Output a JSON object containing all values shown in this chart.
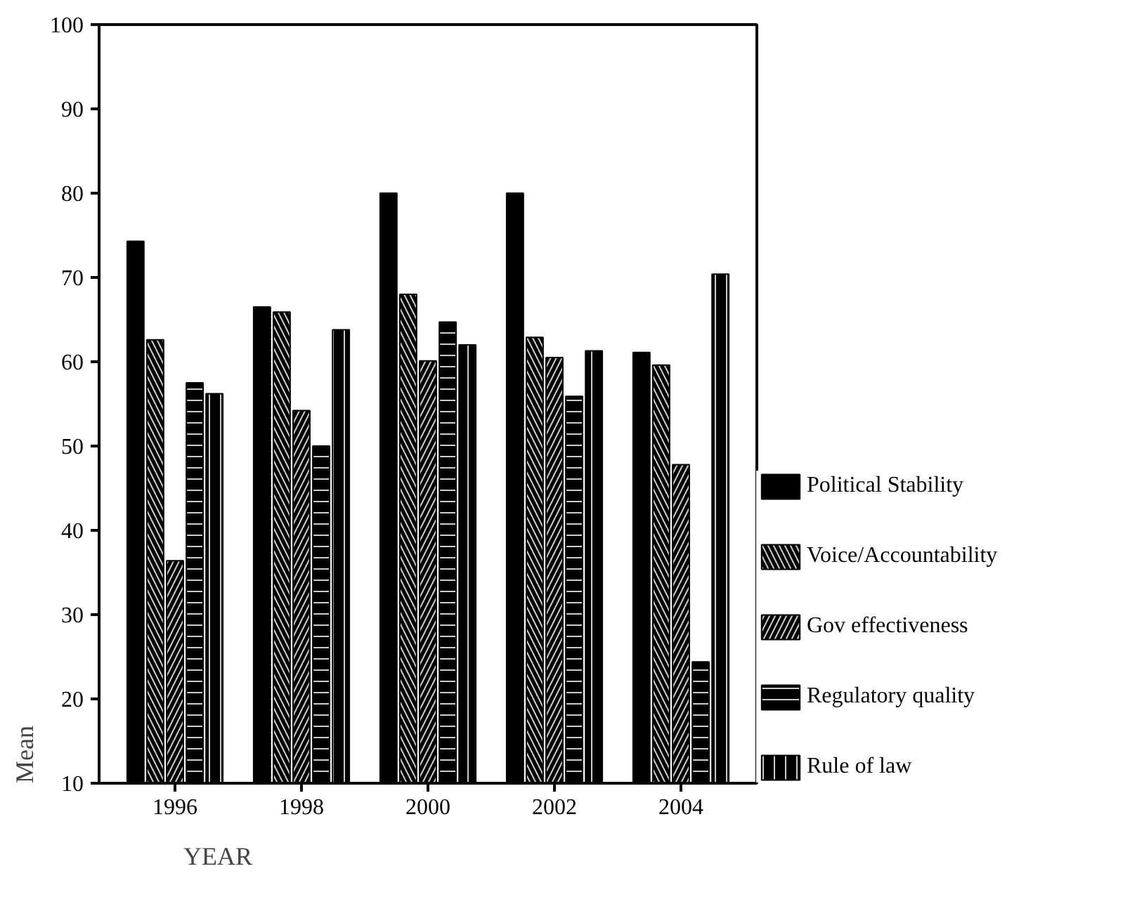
{
  "chart_data": {
    "type": "bar",
    "xlabel": "YEAR",
    "ylabel": "Mean",
    "categories": [
      "1996",
      "1998",
      "2000",
      "2002",
      "2004"
    ],
    "series": [
      {
        "name": "Political Stability",
        "color": "#000000",
        "values": [
          74.3,
          66.5,
          80.0,
          80.0,
          61.1
        ]
      },
      {
        "name": "Voice/Accountability",
        "color": "#000000",
        "values": [
          62.6,
          65.9,
          68.0,
          62.9,
          59.6
        ]
      },
      {
        "name": "Gov effectiveness",
        "color": "#000000",
        "values": [
          36.4,
          54.2,
          60.1,
          60.5,
          47.8
        ]
      },
      {
        "name": "Regulatory quality",
        "color": "#000000",
        "values": [
          57.5,
          50.0,
          64.7,
          55.9,
          24.4
        ]
      },
      {
        "name": "Rule of law",
        "color": "#000000",
        "values": [
          56.2,
          63.8,
          62.0,
          61.3,
          70.4
        ]
      }
    ],
    "ylim": [
      10,
      100
    ],
    "yticks": [
      10,
      20,
      30,
      40,
      50,
      60,
      70,
      80,
      90,
      100
    ],
    "grid": false,
    "legend": "right"
  }
}
